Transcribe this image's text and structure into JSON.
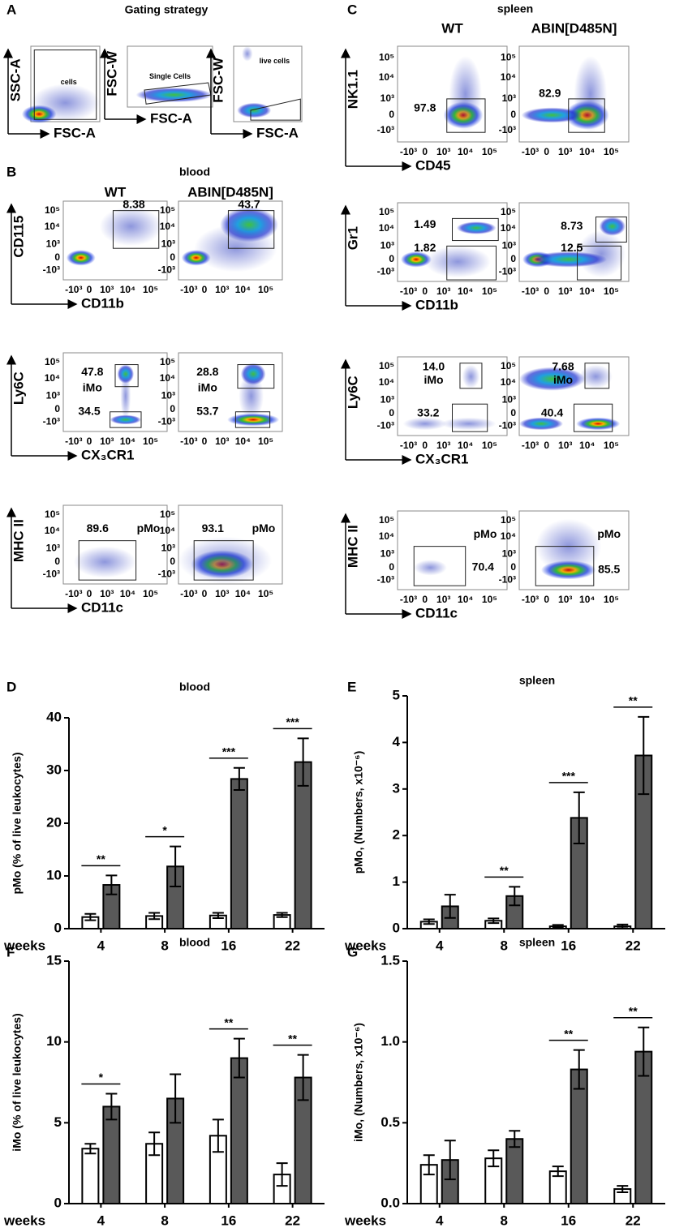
{
  "flow": {
    "ticks": [
      "10⁵",
      "10⁴",
      "10³",
      "0",
      "-10³"
    ],
    "A": {
      "letter": "A",
      "title": "Gating strategy",
      "plots": [
        {
          "y": "SSC-A",
          "x": "FSC-A",
          "gate": "cells"
        },
        {
          "y": "FSC-W",
          "x": "FSC-A",
          "gate": "Single Cells"
        },
        {
          "y": "FSC-W",
          "x": "FSC-A",
          "gate": "live cells"
        }
      ]
    },
    "B": {
      "letter": "B",
      "title": "blood",
      "columns": [
        "WT",
        "ABIN[D485N]"
      ],
      "rows": [
        {
          "y": "CD115",
          "x": "CD11b",
          "gates": [
            [
              "8.38"
            ],
            [
              "43.7"
            ]
          ]
        },
        {
          "y": "Ly6C",
          "x": "CX₃CR1",
          "gates": [
            [
              "47.8",
              "iMo",
              "34.5"
            ],
            [
              "28.8",
              "iMo",
              "53.7"
            ]
          ]
        },
        {
          "y": "MHC II",
          "x": "CD11c",
          "gates": [
            [
              "89.6",
              "pMo"
            ],
            [
              "93.1",
              "pMo"
            ]
          ]
        }
      ]
    },
    "C": {
      "letter": "C",
      "title": "spleen",
      "columns": [
        "WT",
        "ABIN[D485N]"
      ],
      "rows": [
        {
          "y": "NK1.1",
          "x": "CD45",
          "gates": [
            [
              "97.8"
            ],
            [
              "82.9"
            ]
          ]
        },
        {
          "y": "Gr1",
          "x": "CD11b",
          "gates": [
            [
              "1.49",
              "1.82"
            ],
            [
              "8.73",
              "12.5"
            ]
          ]
        },
        {
          "y": "Ly6C",
          "x": "CX₃CR1",
          "gates": [
            [
              "14.0",
              "iMo",
              "33.2"
            ],
            [
              "7.68",
              "iMo",
              "40.4"
            ]
          ]
        },
        {
          "y": "MHC II",
          "x": "CD11c",
          "gates": [
            [
              "pMo",
              "70.4"
            ],
            [
              "pMo",
              "85.5"
            ]
          ]
        }
      ]
    }
  },
  "chart_data": [
    {
      "type": "bar",
      "letter": "D",
      "title": "blood",
      "y_label": "pMo (% of live leukocytes)",
      "x_label": "weeks",
      "categories": [
        "4",
        "8",
        "16",
        "22"
      ],
      "series": [
        {
          "color": "#ffffff",
          "values": [
            2.2,
            2.4,
            2.5,
            2.6
          ],
          "errors": [
            0.6,
            0.6,
            0.5,
            0.4
          ]
        },
        {
          "color": "#595959",
          "values": [
            8.3,
            11.8,
            28.4,
            31.6
          ],
          "errors": [
            1.8,
            3.8,
            2.1,
            4.5
          ]
        }
      ],
      "significance": [
        "**",
        "*",
        "***",
        "***"
      ],
      "ylim": [
        0,
        40
      ],
      "yticks": [
        0,
        10,
        20,
        30,
        40
      ]
    },
    {
      "type": "bar",
      "letter": "E",
      "title": "spleen",
      "y_label": "pMo, (Numbers, x10⁻⁶)",
      "x_label": "weeks",
      "categories": [
        "4",
        "8",
        "16",
        "22"
      ],
      "series": [
        {
          "color": "#ffffff",
          "values": [
            0.15,
            0.17,
            0.05,
            0.05
          ],
          "errors": [
            0.05,
            0.05,
            0.03,
            0.04
          ]
        },
        {
          "color": "#595959",
          "values": [
            0.48,
            0.7,
            2.38,
            3.72
          ],
          "errors": [
            0.25,
            0.2,
            0.55,
            0.83
          ]
        }
      ],
      "significance": [
        null,
        "**",
        "***",
        "**"
      ],
      "ylim": [
        0,
        5
      ],
      "yticks": [
        0,
        1,
        2,
        3,
        4,
        5
      ]
    },
    {
      "type": "bar",
      "letter": "F",
      "title": "blood",
      "y_label": "iMo (% of live leukocytes)",
      "x_label": "weeks",
      "categories": [
        "4",
        "8",
        "16",
        "22"
      ],
      "series": [
        {
          "color": "#ffffff",
          "values": [
            3.4,
            3.7,
            4.2,
            1.8
          ],
          "errors": [
            0.3,
            0.7,
            1.0,
            0.7
          ]
        },
        {
          "color": "#595959",
          "values": [
            6.0,
            6.5,
            9.0,
            7.8
          ],
          "errors": [
            0.8,
            1.5,
            1.2,
            1.4
          ]
        }
      ],
      "significance": [
        "*",
        null,
        "**",
        "**"
      ],
      "ylim": [
        0,
        15
      ],
      "yticks": [
        0,
        5,
        10,
        15
      ]
    },
    {
      "type": "bar",
      "letter": "G",
      "title": "spleen",
      "y_label": "iMo, (Numbers, x10⁻⁶)",
      "x_label": "weeks",
      "categories": [
        "4",
        "8",
        "16",
        "22"
      ],
      "series": [
        {
          "color": "#ffffff",
          "values": [
            0.24,
            0.28,
            0.2,
            0.09
          ],
          "errors": [
            0.06,
            0.05,
            0.03,
            0.02
          ]
        },
        {
          "color": "#595959",
          "values": [
            0.27,
            0.4,
            0.83,
            0.94
          ],
          "errors": [
            0.12,
            0.05,
            0.12,
            0.15
          ]
        }
      ],
      "significance": [
        null,
        null,
        "**",
        "**"
      ],
      "ylim": [
        0,
        1.5
      ],
      "yticks": [
        {
          "value": 0,
          "label": "0.0"
        },
        0.5,
        {
          "value": 1,
          "label": "1.0"
        },
        1.5
      ]
    }
  ]
}
